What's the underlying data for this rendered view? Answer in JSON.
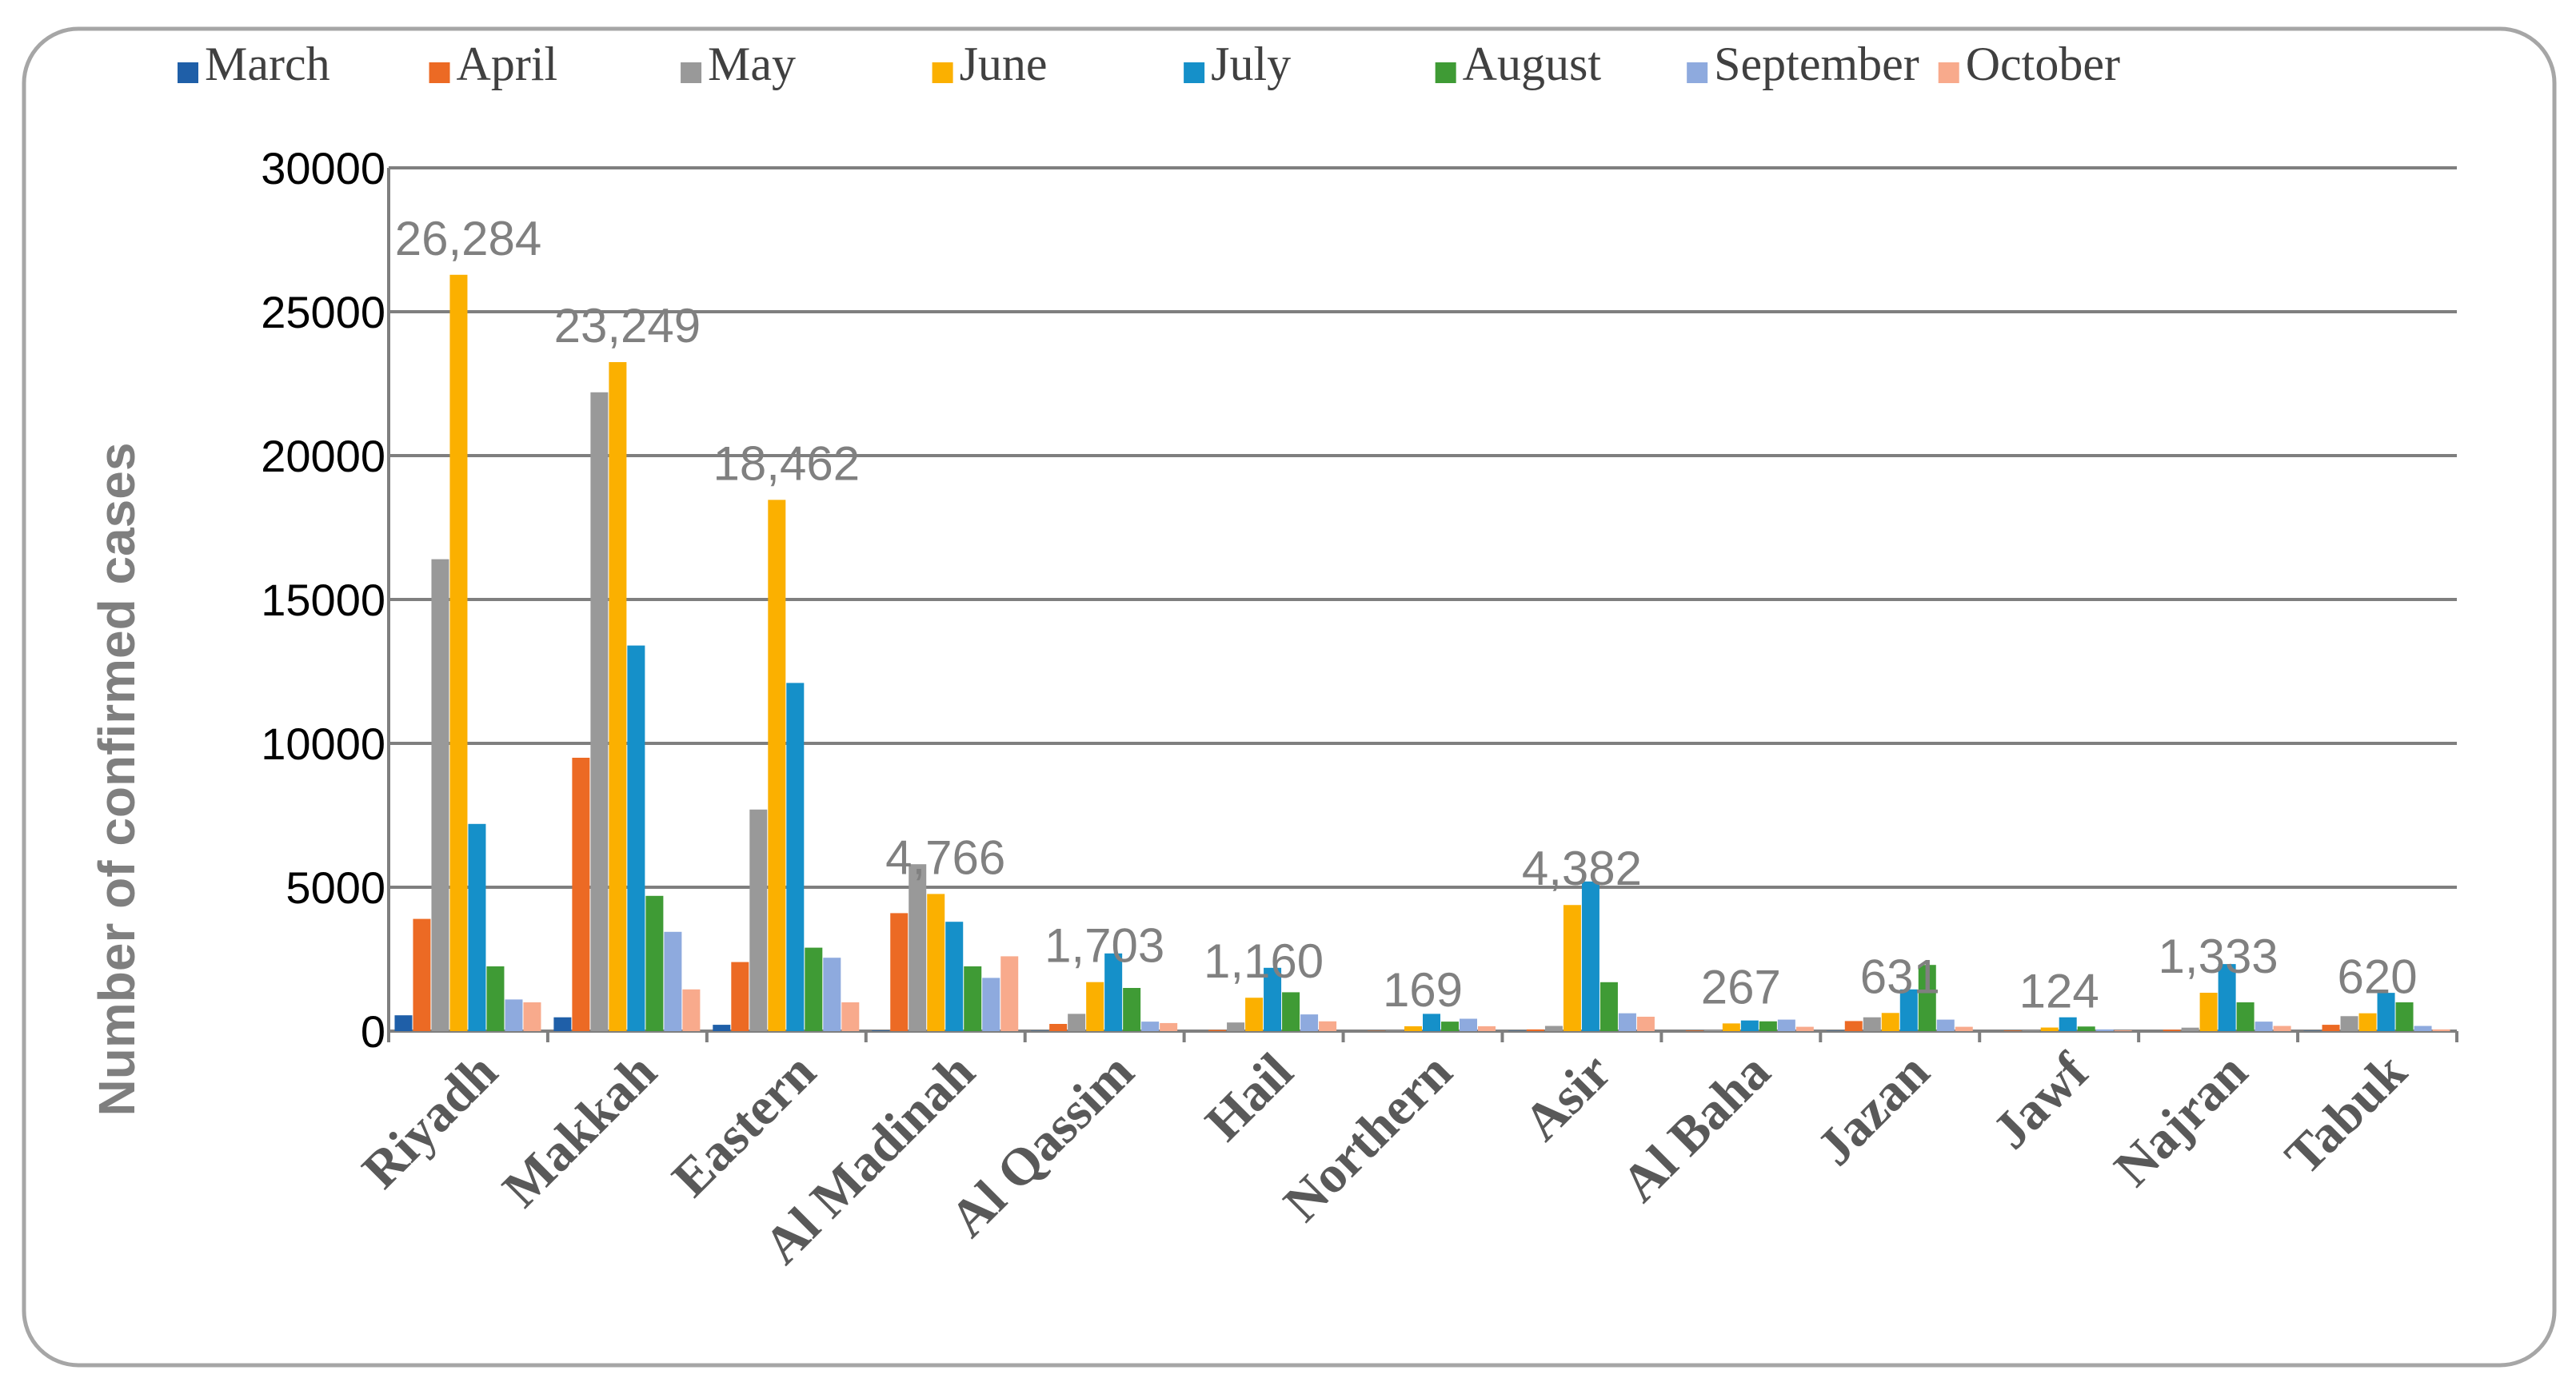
{
  "chart_data": {
    "type": "bar",
    "title": "",
    "xlabel": "",
    "ylabel": "Number of confirmed cases",
    "ylim": [
      0,
      30000
    ],
    "yticks": [
      0,
      5000,
      10000,
      15000,
      20000,
      25000,
      30000
    ],
    "grid": true,
    "legend_position": "top",
    "categories": [
      "Riyadh",
      "Makkah",
      "Eastern",
      "Al Madinah",
      "Al Qassim",
      "Hail",
      "Northern",
      "Asir",
      "Al Baha",
      "Jazan",
      "Jawf",
      "Najran",
      "Tabuk"
    ],
    "series": [
      {
        "name": "March",
        "color": "#1f5fa8",
        "values": [
          550,
          480,
          220,
          20,
          10,
          0,
          0,
          10,
          0,
          10,
          0,
          0,
          10
        ]
      },
      {
        "name": "April",
        "color": "#ec6a24",
        "values": [
          3900,
          9500,
          2400,
          4100,
          250,
          40,
          10,
          60,
          20,
          350,
          20,
          50,
          220
        ]
      },
      {
        "name": "May",
        "color": "#999999",
        "values": [
          16400,
          22200,
          7700,
          5800,
          600,
          300,
          20,
          180,
          60,
          480,
          30,
          120,
          520
        ]
      },
      {
        "name": "June",
        "color": "#fbb000",
        "values": [
          26284,
          23249,
          18462,
          4766,
          1703,
          1160,
          169,
          4382,
          267,
          631,
          124,
          1333,
          620
        ]
      },
      {
        "name": "July",
        "color": "#1590c9",
        "values": [
          7200,
          13400,
          12100,
          3800,
          2700,
          2200,
          600,
          5200,
          370,
          1450,
          480,
          2330,
          1330
        ]
      },
      {
        "name": "August",
        "color": "#3f9b35",
        "values": [
          2250,
          4700,
          2900,
          2250,
          1500,
          1350,
          330,
          1700,
          340,
          2300,
          160,
          1000,
          1000
        ]
      },
      {
        "name": "September",
        "color": "#8eaade",
        "values": [
          1100,
          3450,
          2550,
          1850,
          330,
          580,
          430,
          620,
          400,
          400,
          60,
          330,
          180
        ]
      },
      {
        "name": "October",
        "color": "#f8aa8c",
        "values": [
          1000,
          1450,
          1000,
          2600,
          280,
          340,
          170,
          500,
          150,
          150,
          30,
          180,
          60
        ]
      }
    ],
    "annotations": [
      {
        "category": "Riyadh",
        "series": "June",
        "text": "26,284"
      },
      {
        "category": "Makkah",
        "series": "June",
        "text": "23,249"
      },
      {
        "category": "Eastern",
        "series": "June",
        "text": "18,462"
      },
      {
        "category": "Al Madinah",
        "series": "June",
        "text": "4,766"
      },
      {
        "category": "Al Qassim",
        "series": "June",
        "text": "1,703"
      },
      {
        "category": "Hail",
        "series": "June",
        "text": "1,160"
      },
      {
        "category": "Northern",
        "series": "June",
        "text": "169"
      },
      {
        "category": "Asir",
        "series": "June",
        "text": "4,382"
      },
      {
        "category": "Al Baha",
        "series": "June",
        "text": "267"
      },
      {
        "category": "Jazan",
        "series": "June",
        "text": "631"
      },
      {
        "category": "Jawf",
        "series": "June",
        "text": "124"
      },
      {
        "category": "Najran",
        "series": "June",
        "text": "1,333"
      },
      {
        "category": "Tabuk",
        "series": "June",
        "text": "620"
      }
    ],
    "colors": {
      "grid": "#7f7f7f",
      "frame": "#a6a6a6"
    }
  }
}
